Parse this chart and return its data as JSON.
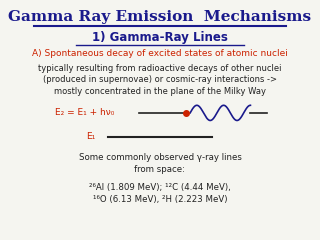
{
  "title": "Gamma Ray Emission  Mechanisms",
  "title_color": "#1a1a8c",
  "subtitle": "1) Gamma-Ray Lines",
  "subtitle_color": "#1a1a8c",
  "line_A": "A) Spontaneous decay of excited states of atomic nuclei",
  "line_A_color": "#cc2200",
  "body_text": "typically resulting from radioactive decays of other nuclei\n(produced in supernovae) or cosmic-ray interactions ->\nmostly concentrated in the plane of the Milky Way",
  "body_color": "#222222",
  "eq_text": "E₂ = E₁ + hν₀",
  "eq_color": "#cc2200",
  "E1_text": "E₁",
  "E1_color": "#cc2200",
  "bottom_text1": "Some commonly observed γ-ray lines\nfrom space:",
  "bottom_text2": "²⁶Al (1.809 MeV); ¹²C (4.44 MeV),\n¹⁶O (6.13 MeV), ²H (2.223 MeV)",
  "bottom_color": "#222222",
  "bg_color": "#f5f5f0",
  "line_color": "#222222",
  "dot_color": "#cc2200",
  "wave_color": "#1a1a8c"
}
